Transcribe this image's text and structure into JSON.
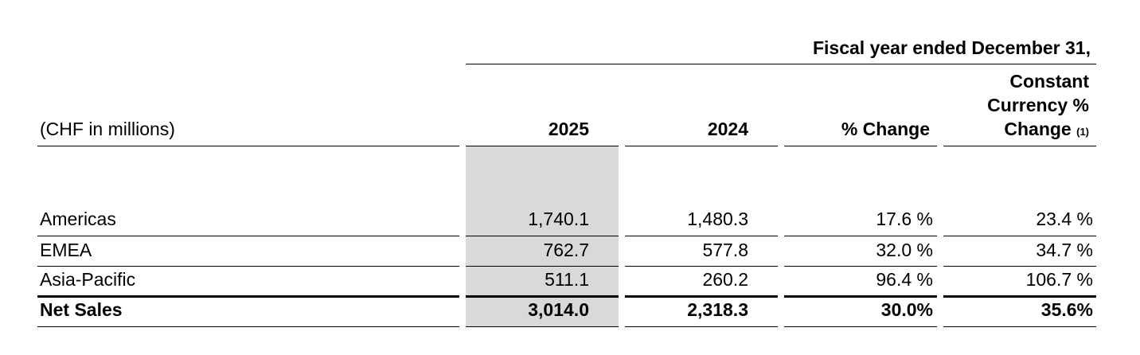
{
  "table": {
    "super_header": "Fiscal year ended December 31,",
    "columns": [
      "(CHF in millions)",
      "2025",
      "2024",
      "% Change"
    ],
    "cc_header": {
      "lines": [
        "Constant",
        "Currency %",
        "Change"
      ],
      "footnote": "(1)"
    },
    "rows": [
      [
        "Americas",
        "1,740.1",
        "1,480.3",
        "17.6 %",
        "23.4 %"
      ],
      [
        "EMEA",
        "762.7",
        "577.8",
        "32.0 %",
        "34.7 %"
      ],
      [
        "Asia-Pacific",
        "511.1",
        "260.2",
        "96.4 %",
        "106.7 %"
      ],
      [
        "Net Sales",
        "3,014.0",
        "2,318.3",
        "30.0%",
        "35.6%"
      ]
    ]
  }
}
